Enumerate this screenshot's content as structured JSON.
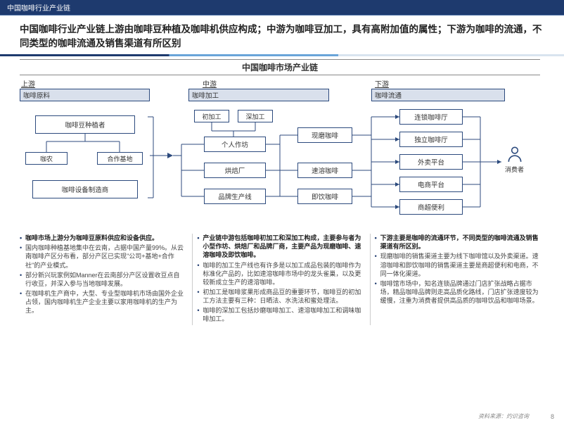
{
  "top_label": "中国咖啡行业产业链",
  "headline": "中国咖啡行业产业链上游由咖啡豆种植及咖啡机供应构成；中游为咖啡豆加工，具有高附加值的属性；下游为咖啡的流通，不同类型的咖啡流通及销售渠道有所区别",
  "subtitle": "中国咖啡市场产业链",
  "sections": {
    "up": "上游",
    "mid": "中游",
    "down": "下游"
  },
  "bars": {
    "up": "咖啡原料",
    "mid": "咖啡加工",
    "down": "咖啡流通"
  },
  "nodes": {
    "planter": "咖啡豆种植者",
    "farmer": "咖农",
    "base": "合作基地",
    "equip": "咖啡设备制造商",
    "prim": "初加工",
    "deep": "深加工",
    "workshop": "个人作坊",
    "roast": "烘焙厂",
    "brandline": "品牌生产线",
    "fresh": "现磨咖啡",
    "instant": "速溶咖啡",
    "rtd": "即饮咖啡",
    "chain": "连锁咖啡厅",
    "indep": "独立咖啡厅",
    "takeout": "外卖平台",
    "ecom": "电商平台",
    "cvs": "商超便利",
    "consumer": "消费者"
  },
  "bulcols": [
    [
      {
        "t": "咖啡市场上游分为咖啡豆原料供应和设备供应。",
        "b": true
      },
      {
        "t": "国内咖啡种植基地集中在云南，占据中国产量99%。从云南咖啡产区分布看，部分产区已实现\"公司+基地+合作社\"的产业模式。",
        "b": false
      },
      {
        "t": "部分新兴玩家例如Manner在云南部分产区设置收豆点自行收豆，并深入参与当地咖啡发展。",
        "b": false
      },
      {
        "t": "在咖啡机生产商中，大型、专业型咖啡机市场由国外企业占领，国内咖啡机生产企业主要以家用咖啡机的生产为主。",
        "b": false
      }
    ],
    [
      {
        "t": "产业链中游包括咖啡初加工和深加工构成，主要参与者为小型作坊、烘焙厂和品牌厂商，主要产品为现磨咖啡、速溶咖啡及即饮咖啡。",
        "b": true
      },
      {
        "t": "咖啡的加工生产线也有许多是以加工成品包装的咖啡作为标准化产品的，比如速溶咖啡市场中的龙头雀巢，以及更较新成立生产的速溶咖啡。",
        "b": false
      },
      {
        "t": "初加工是咖啡浆果形成商品豆的重要环节，咖啡豆的初加工方法主要有三种：日晒法、水洗法和蜜处理法。",
        "b": false
      },
      {
        "t": "咖啡的深加工包括炒磨咖啡加工、速溶咖啡加工和调味咖啡加工。",
        "b": false
      }
    ],
    [
      {
        "t": "下游主要是咖啡的流通环节，不同类型的咖啡流通及销售渠道有所区别。",
        "b": true
      },
      {
        "t": "现磨咖啡的销售渠道主要为线下咖啡馆以及外卖渠道。速溶咖啡和即饮咖啡的销售渠道主要是商超便利和电商，不同一体化渠道。",
        "b": false
      },
      {
        "t": "咖啡馆市场中，知名连锁品牌通过门店扩张战略占据市场，精品咖啡品牌则走高品质化路线，门店扩张速度较为缓慢，注重为消费者提供高品质的咖啡饮品和咖啡场景。",
        "b": false
      }
    ]
  ],
  "source": "资料来源：灼识咨询",
  "page": "8"
}
